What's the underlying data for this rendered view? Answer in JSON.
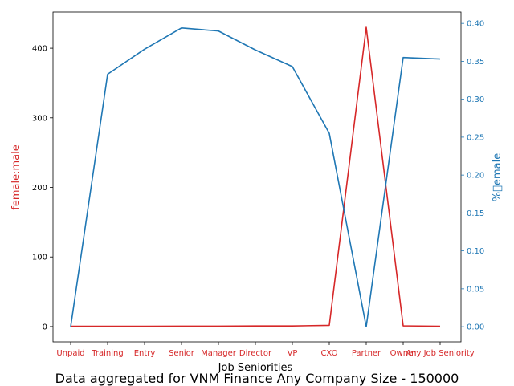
{
  "chart_data": {
    "type": "line",
    "xlabel": "Job Seniorities",
    "categories": [
      "Unpaid",
      "Training",
      "Entry",
      "Senior",
      "Manager",
      "Director",
      "VP",
      "CXO",
      "Partner",
      "Owner",
      "Any Job Seniority"
    ],
    "left_axis": {
      "label": "female:male",
      "color": "#d62728",
      "ylim": [
        -22,
        452
      ],
      "ticks": [
        "0",
        "100",
        "200",
        "300",
        "400"
      ]
    },
    "right_axis": {
      "label": "%\u0000emale",
      "color": "#1f77b4",
      "ylim": [
        -0.02,
        0.415
      ],
      "ticks": [
        "0.00",
        "0.05",
        "0.10",
        "0.15",
        "0.20",
        "0.25",
        "0.30",
        "0.35",
        "0.40"
      ]
    },
    "series": [
      {
        "axis": "left",
        "color": "#d62728",
        "values": [
          0.5,
          0.4,
          0.5,
          0.6,
          0.6,
          0.9,
          0.9,
          1.7,
          430,
          1.0,
          0.5
        ]
      },
      {
        "axis": "right",
        "color": "#1f77b4",
        "values": [
          0.0,
          0.333,
          0.366,
          0.394,
          0.39,
          0.365,
          0.343,
          0.255,
          0.0,
          0.355,
          0.353
        ]
      }
    ]
  },
  "caption": "Data aggregated for VNM Finance Any Company Size - 150000"
}
